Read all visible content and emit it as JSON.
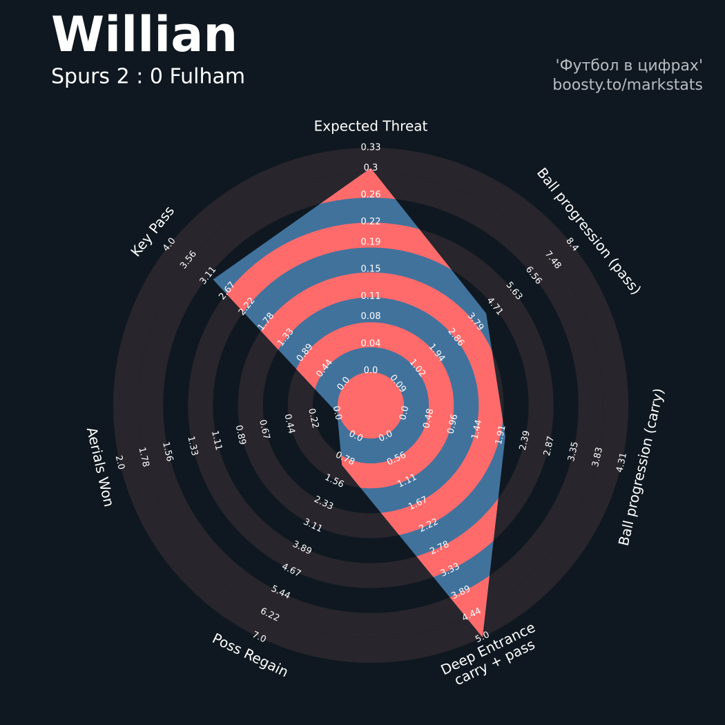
{
  "chart_data": {
    "type": "radar",
    "title": "Willian",
    "subtitle": "Spurs 2 : 0 Fulham",
    "credits": [
      "'Футбол в цифрах'",
      "boosty.to/markstats"
    ],
    "categories": [
      "Expected Threat",
      "Ball progression (pass)",
      "Ball progression (carry)",
      "Deep Entrance\ncarry + pass",
      "Poss Regain",
      "Aerials Won",
      "Key Pass"
    ],
    "values": [
      0.3,
      4.3,
      2.0,
      5.0,
      1.0,
      0,
      3.0
    ],
    "ranges": [
      [
        0,
        0.33
      ],
      [
        0.09,
        8.4
      ],
      [
        0,
        4.31
      ],
      [
        0,
        5.0
      ],
      [
        0,
        7.0
      ],
      [
        0,
        2.0
      ],
      [
        0,
        4.0
      ]
    ],
    "ticks": [
      [
        {
          "value": 0,
          "label": "0.0"
        },
        0.04,
        0.08,
        0.11,
        0.15,
        0.19,
        0.22,
        0.26,
        0.3,
        0.33
      ],
      [
        0.09,
        1.02,
        1.94,
        2.86,
        3.79,
        4.71,
        5.63,
        6.56,
        7.48,
        8.4
      ],
      [
        {
          "value": 0,
          "label": "0.0"
        },
        0.48,
        0.96,
        1.44,
        1.91,
        2.39,
        2.87,
        3.35,
        3.83,
        4.31
      ],
      [
        {
          "value": 0,
          "label": "0.0"
        },
        0.56,
        1.11,
        1.67,
        2.22,
        2.78,
        3.33,
        3.89,
        4.44,
        {
          "value": 5,
          "label": "5.0"
        }
      ],
      [
        {
          "value": 0,
          "label": "0.0"
        },
        0.78,
        1.56,
        2.33,
        3.11,
        3.89,
        4.67,
        5.44,
        6.22,
        {
          "value": 7,
          "label": "7.0"
        }
      ],
      [
        {
          "value": 0,
          "label": "0.0"
        },
        0.22,
        0.44,
        0.67,
        0.89,
        1.11,
        1.33,
        1.56,
        1.78,
        {
          "value": 2,
          "label": "2.0"
        }
      ],
      [
        {
          "value": 0,
          "label": "0.0"
        },
        0.44,
        0.89,
        1.33,
        1.78,
        2.22,
        2.67,
        3.11,
        3.56,
        {
          "value": 4,
          "label": "4.0"
        }
      ]
    ],
    "color": "#41729c",
    "ring_color": "#ff6b6b"
  }
}
